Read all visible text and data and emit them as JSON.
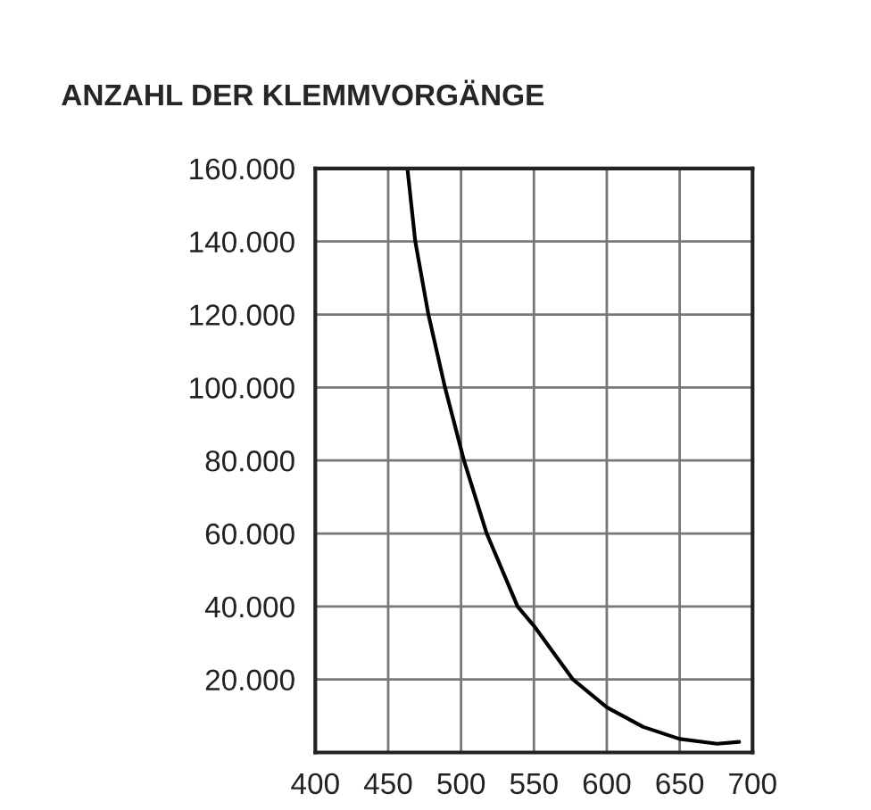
{
  "chart_data": {
    "type": "line",
    "title": "ANZAHL DER KLEMMVORGÄNGE",
    "x": [
      463.2,
      468.6,
      477.6,
      489,
      502,
      517.6,
      538.8,
      550,
      576.8,
      600,
      625,
      650,
      675.7,
      690.8
    ],
    "series": [
      {
        "color": "#000000",
        "values": [
          160000,
          140000,
          120000,
          100000,
          80000,
          60000,
          40000,
          34700,
          20000,
          12400,
          7000,
          3700,
          2400,
          2900
        ]
      }
    ],
    "xlim": [
      400,
      700
    ],
    "xticks": [
      400,
      450,
      500,
      550,
      600,
      650,
      700
    ],
    "ylim": [
      0,
      160000
    ],
    "yticks": [
      {
        "value": 20000,
        "label": "20.000"
      },
      {
        "value": 40000,
        "label": "40.000"
      },
      {
        "value": 60000,
        "label": "60.000"
      },
      {
        "value": 80000,
        "label": "80.000"
      },
      {
        "value": 100000,
        "label": "100.000"
      },
      {
        "value": 120000,
        "label": "120.000"
      },
      {
        "value": 140000,
        "label": "140.000"
      },
      {
        "value": 160000,
        "label": "160.000"
      }
    ],
    "grid": true,
    "marker": "none",
    "line_style": "solid"
  }
}
